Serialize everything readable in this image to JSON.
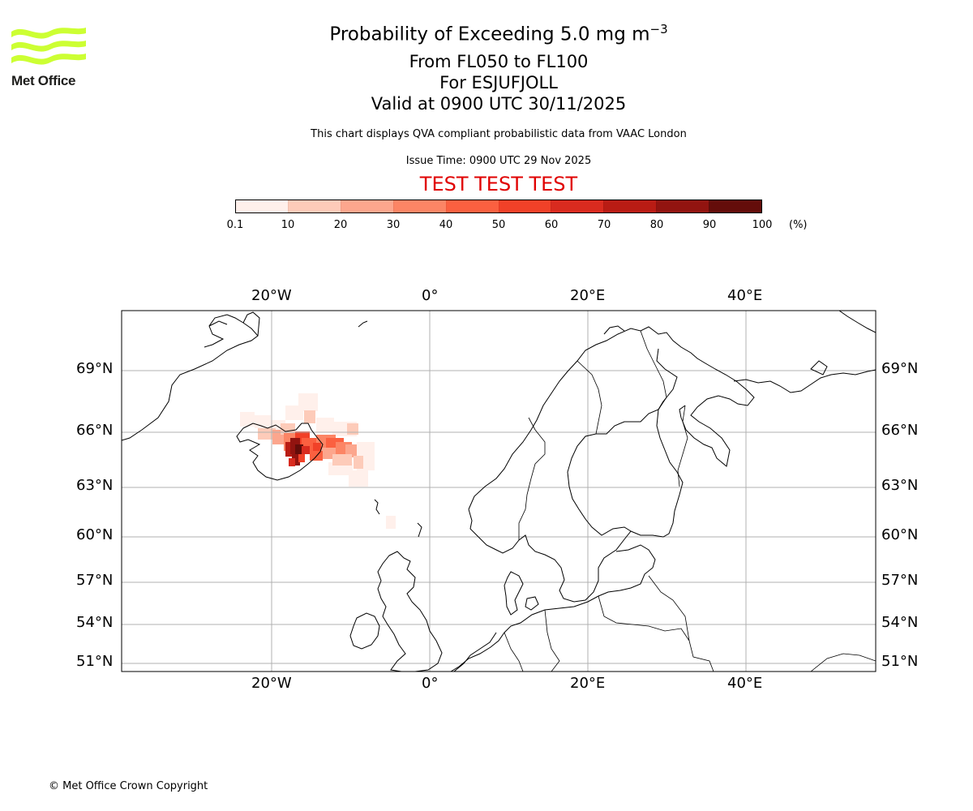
{
  "logo": {
    "text": "Met Office",
    "color": "#ccff33"
  },
  "title": {
    "line1_prefix": "Probability of Exceeding 5.0 mg m",
    "line1_exponent": "−3",
    "line2": "From FL050 to FL100",
    "line3": "For ESJUFJOLL",
    "line4": "Valid at 0900 UTC 30/11/2025"
  },
  "notes": {
    "description": "This chart displays QVA compliant probabilistic data from VAAC London",
    "issue_time": "Issue Time: 0900 UTC 29 Nov 2025"
  },
  "test_banner": {
    "text": "TEST TEST TEST",
    "color": "#e00000"
  },
  "colorbar": {
    "ticks": [
      "0.1",
      "10",
      "20",
      "30",
      "40",
      "50",
      "60",
      "70",
      "80",
      "90",
      "100"
    ],
    "unit": "(%)",
    "colors": [
      "#fff0eb",
      "#fdcbb9",
      "#fca68d",
      "#fc8565",
      "#fb6040",
      "#f14128",
      "#d92b1f",
      "#b91c14",
      "#921410",
      "#640d0a"
    ]
  },
  "map": {
    "lon_labels": [
      "20°W",
      "0°",
      "20°E",
      "40°E"
    ],
    "lat_labels": [
      "69°N",
      "66°N",
      "63°N",
      "60°N",
      "57°N",
      "54°N",
      "51°N"
    ],
    "ash_region": "Esjufjoll, south-east Iceland"
  },
  "copyright": "© Met Office Crown Copyright"
}
